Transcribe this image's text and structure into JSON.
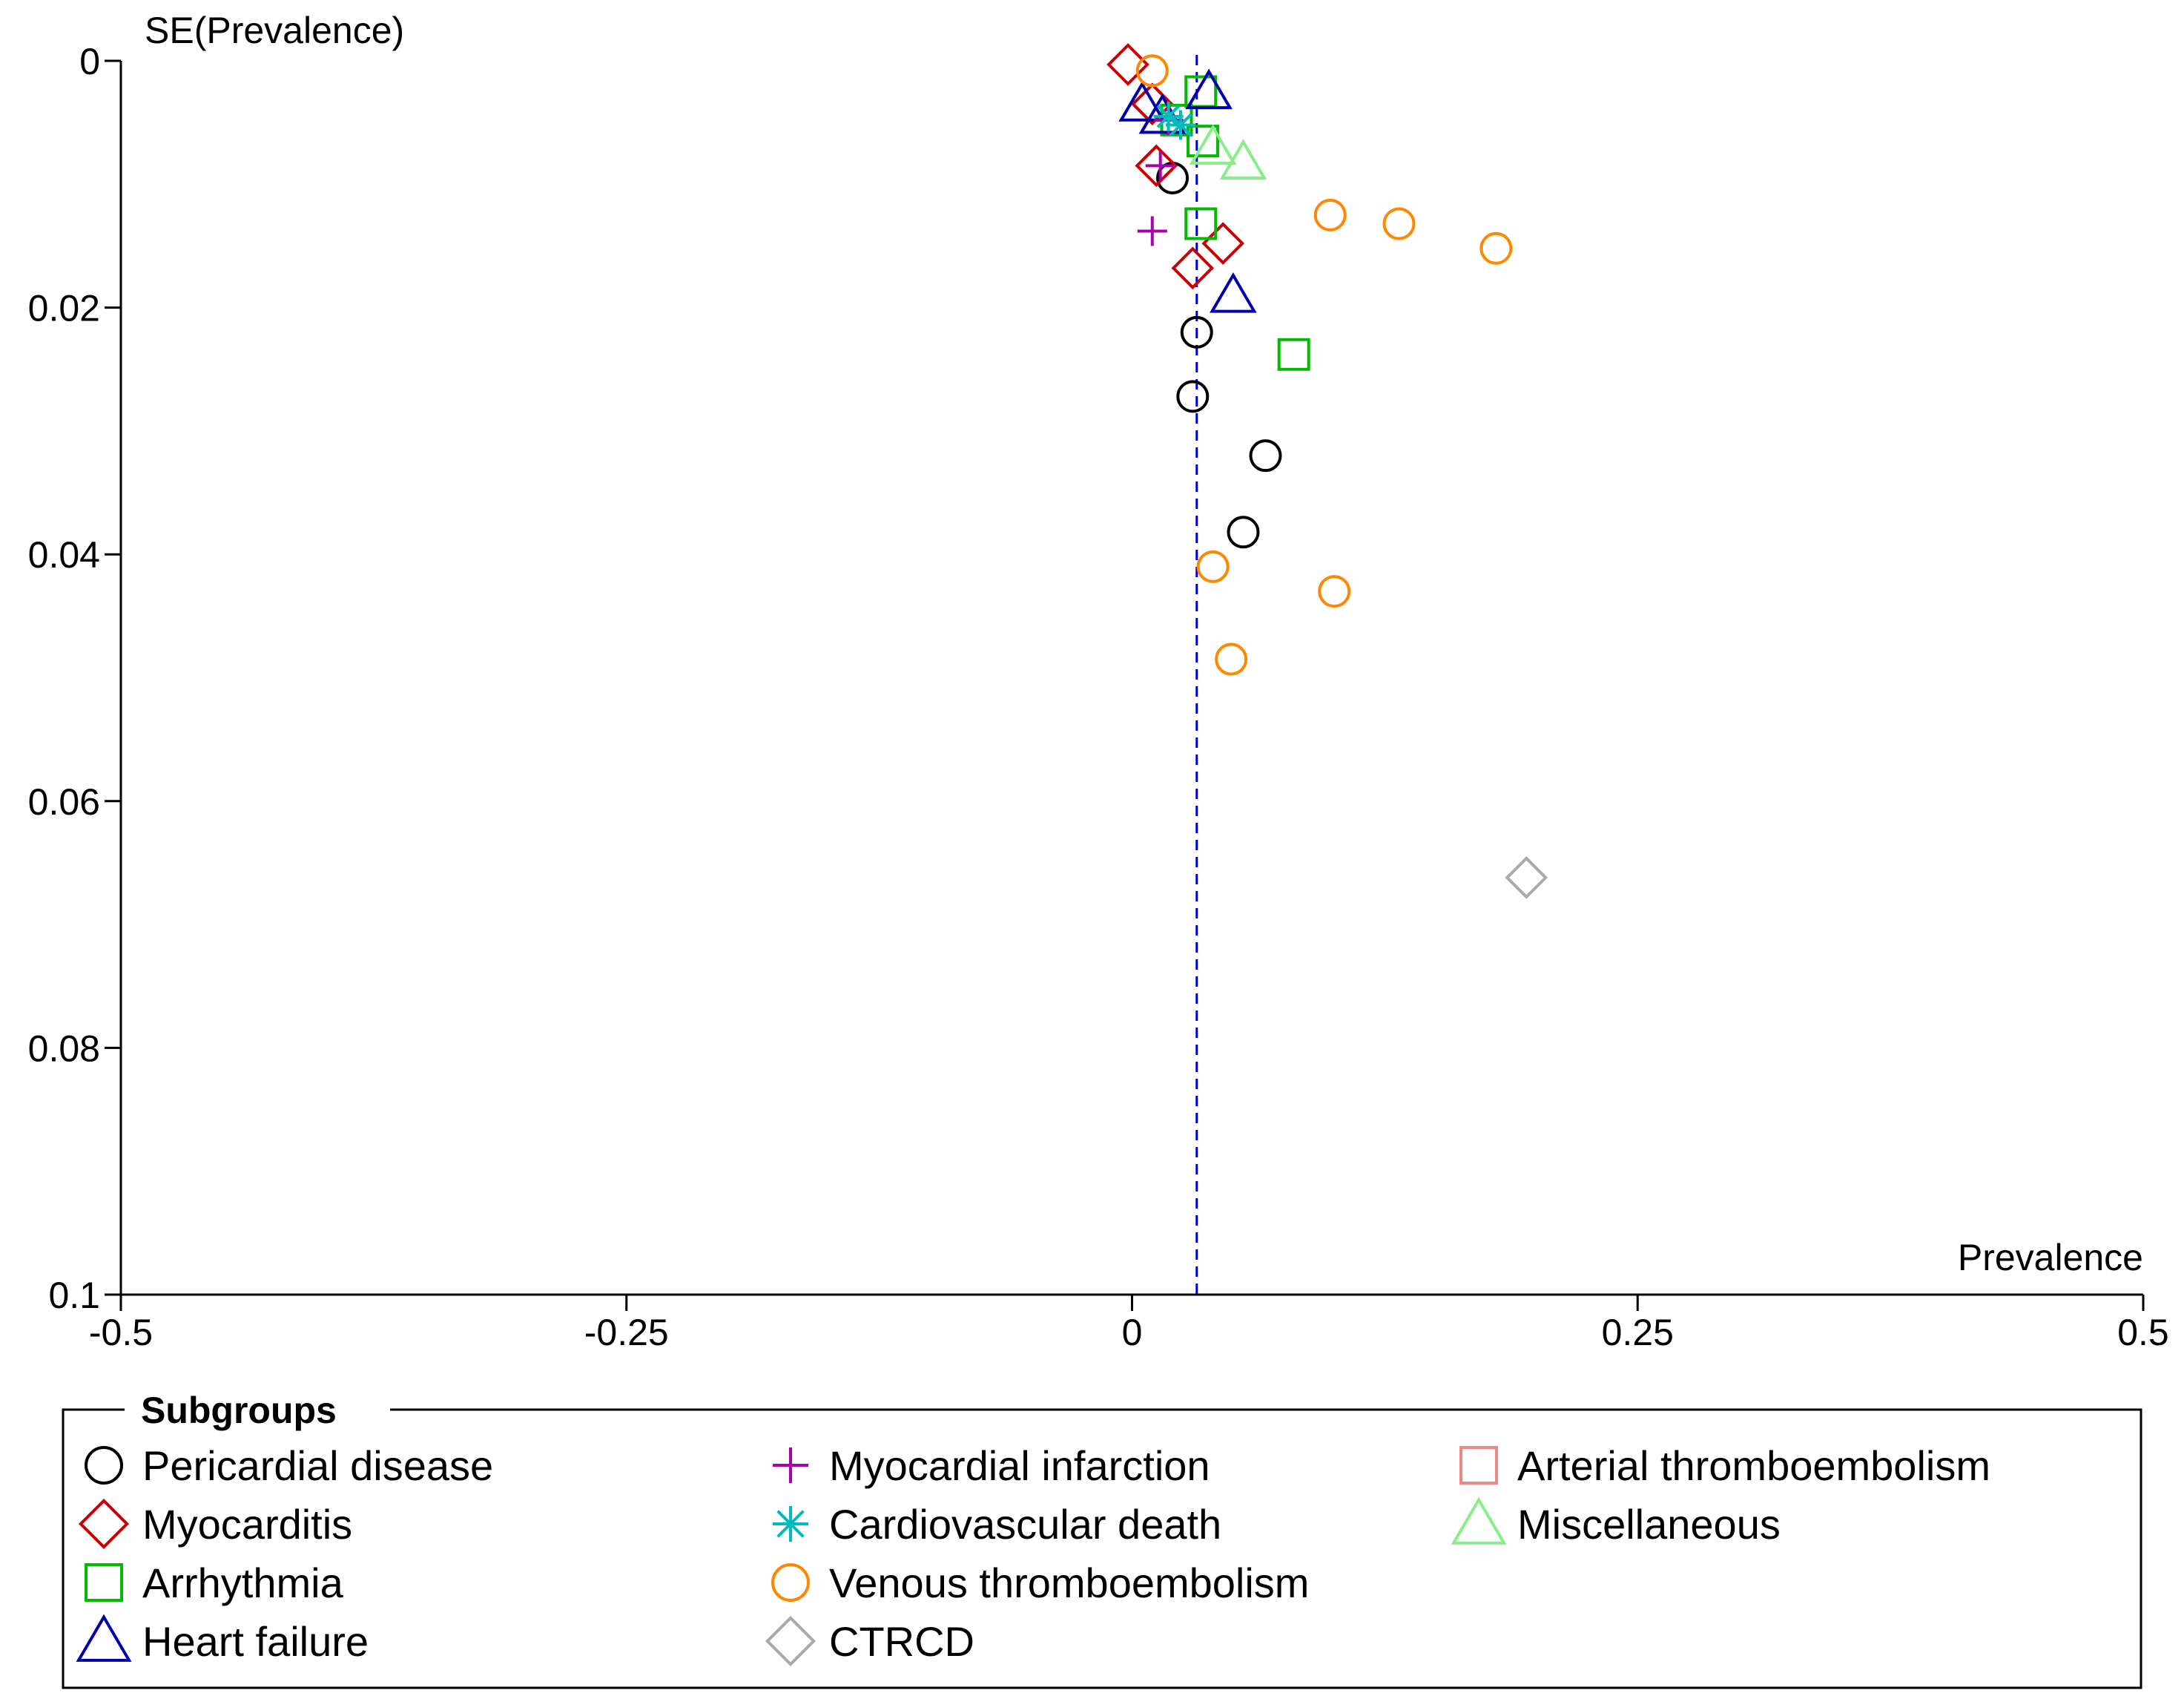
{
  "chart_data": {
    "type": "scatter",
    "title": "",
    "xlabel": "Prevalence",
    "ylabel": "SE(Prevalence)",
    "xlim": [
      -0.5,
      0.5
    ],
    "ylim": [
      0,
      0.1
    ],
    "y_inverted": true,
    "x_ticks": [
      -0.5,
      -0.25,
      0,
      0.25,
      0.5
    ],
    "x_tick_labels": [
      "-0.5",
      "-0.25",
      "0",
      "0.25",
      "0.5"
    ],
    "y_ticks": [
      0,
      0.02,
      0.04,
      0.06,
      0.08,
      0.1
    ],
    "y_tick_labels": [
      "0",
      "0.02",
      "0.04",
      "0.06",
      "0.08",
      "0.1"
    ],
    "reference_line": {
      "x": 0.032,
      "style": "dashed",
      "color": "#0000cc"
    },
    "legend": {
      "title": "Subgroups",
      "placement": "bottom"
    },
    "series": [
      {
        "name": "Pericardial disease",
        "marker": "circle",
        "color": "#000000",
        "points": [
          [
            0.02,
            0.0095
          ],
          [
            0.032,
            0.022
          ],
          [
            0.03,
            0.0272
          ],
          [
            0.066,
            0.032
          ],
          [
            0.055,
            0.0382
          ]
        ]
      },
      {
        "name": "Myocarditis",
        "marker": "diamond",
        "color": "#cc0000",
        "points": [
          [
            -0.002,
            0.0003
          ],
          [
            0.012,
            0.0085
          ],
          [
            0.045,
            0.0148
          ],
          [
            0.03,
            0.0168
          ],
          [
            0.01,
            0.0035
          ]
        ]
      },
      {
        "name": "Arrhythmia",
        "marker": "square",
        "color": "#00bb00",
        "points": [
          [
            0.034,
            0.0025
          ],
          [
            0.035,
            0.0065
          ],
          [
            0.034,
            0.0132
          ],
          [
            0.08,
            0.0238
          ],
          [
            0.022,
            0.0048
          ]
        ]
      },
      {
        "name": "Heart failure",
        "marker": "triangle",
        "color": "#0000aa",
        "points": [
          [
            0.038,
            0.0025
          ],
          [
            0.005,
            0.0035
          ],
          [
            0.015,
            0.0045
          ],
          [
            0.05,
            0.019
          ]
        ]
      },
      {
        "name": "Myocardial infarction",
        "marker": "plus",
        "color": "#aa00aa",
        "points": [
          [
            0.01,
            0.0138
          ],
          [
            0.014,
            0.0085
          ],
          [
            0.018,
            0.0048
          ]
        ]
      },
      {
        "name": "Cardiovascular death",
        "marker": "asterisk",
        "color": "#00bbbb",
        "points": [
          [
            0.018,
            0.0045
          ],
          [
            0.024,
            0.0052
          ]
        ]
      },
      {
        "name": "Venous thromboembolism",
        "marker": "circle",
        "color": "#ff8800",
        "points": [
          [
            0.01,
            0.0008
          ],
          [
            0.098,
            0.0125
          ],
          [
            0.132,
            0.0132
          ],
          [
            0.18,
            0.0152
          ],
          [
            0.04,
            0.041
          ],
          [
            0.1,
            0.043
          ],
          [
            0.049,
            0.0485
          ]
        ]
      },
      {
        "name": "CTRCD",
        "marker": "diamond",
        "color": "#aaaaaa",
        "points": [
          [
            0.195,
            0.0662
          ]
        ]
      },
      {
        "name": "Arterial thromboembolism",
        "marker": "square",
        "color": "#ee8888",
        "points": []
      },
      {
        "name": "Miscellaneous",
        "marker": "triangle",
        "color": "#88ee88",
        "points": [
          [
            0.04,
            0.007
          ],
          [
            0.055,
            0.0082
          ]
        ]
      }
    ],
    "legend_order": [
      [
        "Pericardial disease",
        "Myocarditis",
        "Arrhythmia",
        "Heart failure"
      ],
      [
        "Myocardial infarction",
        "Cardiovascular death",
        "Venous thromboembolism",
        "CTRCD"
      ],
      [
        "Arterial thromboembolism",
        "Miscellaneous"
      ]
    ]
  }
}
